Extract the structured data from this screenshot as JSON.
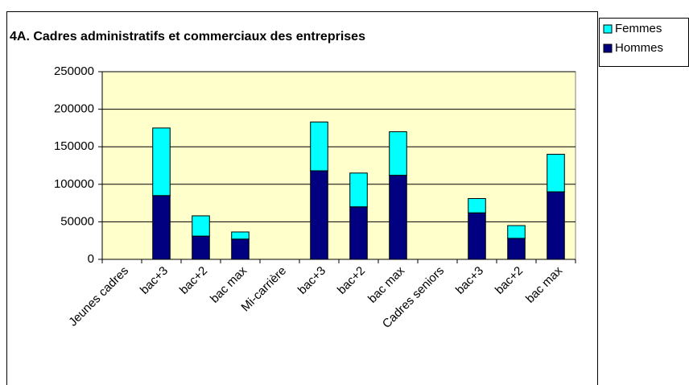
{
  "chart_data": {
    "type": "stacked_bar",
    "title": "4A. Cadres administratifs et commerciaux des entreprises",
    "categories": [
      "Jeunes cadres",
      "bac+3",
      "bac+2",
      "bac max",
      "Mi-carrière",
      "bac+3",
      "bac+2",
      "bac max",
      "Cadres seniors",
      "bac+3",
      "bac+2",
      "bac max"
    ],
    "series": [
      {
        "name": "Hommes",
        "color": "#000080",
        "values": [
          null,
          85000,
          31000,
          27000,
          null,
          118000,
          70000,
          112000,
          null,
          62000,
          28000,
          90000
        ]
      },
      {
        "name": "Femmes",
        "color": "#00ffff",
        "values": [
          null,
          90000,
          27000,
          9500,
          null,
          65000,
          45000,
          58000,
          null,
          19000,
          17000,
          50000
        ]
      }
    ],
    "ylim": [
      0,
      250000
    ],
    "yticks": [
      0,
      50000,
      100000,
      150000,
      200000,
      250000
    ],
    "grid": true,
    "plot_background": "#ffffcc",
    "legend": "top-right"
  }
}
